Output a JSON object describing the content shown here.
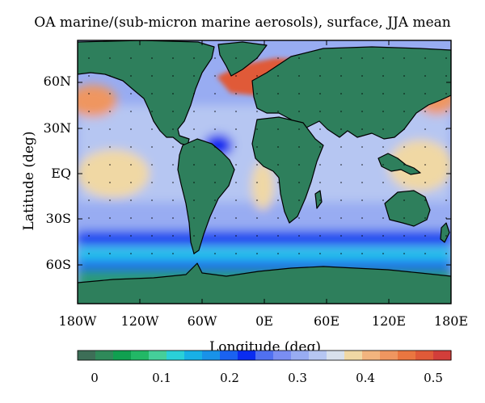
{
  "title": "OA marine/(sub-micron marine aerosols), surface, JJA mean",
  "axes": {
    "xlabel": "Longitude (deg)",
    "ylabel": "Latitude (deg)",
    "lat_ticks": [
      "60N",
      "30N",
      "EQ",
      "30S",
      "60S"
    ],
    "lon_ticks": [
      "180W",
      "120W",
      "60W",
      "0E",
      "60E",
      "120E",
      "180E"
    ]
  },
  "colorbar": {
    "tick_labels": [
      "0",
      "0.1",
      "0.2",
      "0.3",
      "0.4",
      "0.5"
    ],
    "colors": [
      "#3d6e57",
      "#2f8a5a",
      "#10a050",
      "#22b866",
      "#45cf9a",
      "#2ad0d8",
      "#18b0e6",
      "#1992e8",
      "#1a62f0",
      "#0a2cf0",
      "#5070f0",
      "#7a8ef2",
      "#98acf2",
      "#b6c6f2",
      "#d8e0ec",
      "#f0d8a4",
      "#f2b47e",
      "#ef9660",
      "#ea7640",
      "#e05a38",
      "#d23e3a"
    ]
  },
  "map": {
    "land_color": "#2e7f5c",
    "coastline_color": "#000000",
    "field_colors": {
      "subtropical": "#b6c6f2",
      "mid": "#98acf2",
      "southern_band": "#1a62f0",
      "southern_core": "#0a2cf0",
      "southern_cyan": "#22c0ea",
      "antarctic": "#2a9a78",
      "tropical_warm": "#f0d8a4",
      "arctic_high": "#e05a38",
      "arctic_orange": "#ef9660"
    }
  }
}
